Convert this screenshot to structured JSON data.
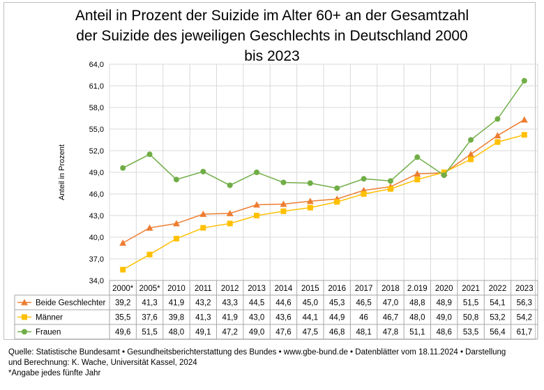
{
  "chart_data": {
    "type": "line",
    "title_lines": [
      "Anteil in Prozent der Suizide im Alter 60+ an der Gesamtzahl",
      "der Suizide des jeweiligen Geschlechts in Deutschland 2000",
      "bis 2023"
    ],
    "ylabel": "Anteil in Prozent",
    "ylim": [
      34.0,
      64.0
    ],
    "yticks": [
      "34,0",
      "37,0",
      "40,0",
      "43,0",
      "46,0",
      "49,0",
      "52,0",
      "55,0",
      "58,0",
      "61,0",
      "64,0"
    ],
    "categories": [
      "2000*",
      "2005*",
      "2010",
      "2011",
      "2012",
      "2013",
      "2014",
      "2015",
      "2016",
      "2017",
      "2018",
      "2.019",
      "2020",
      "2021",
      "2022",
      "2023"
    ],
    "grid": true,
    "data_table": true,
    "series": [
      {
        "name": "Beide Geschlechter",
        "color": "#ED7D31",
        "marker": "triangle",
        "values": [
          39.2,
          41.3,
          41.9,
          43.2,
          43.3,
          44.5,
          44.6,
          45.0,
          45.3,
          46.5,
          47.0,
          48.8,
          48.9,
          51.5,
          54.1,
          56.3
        ],
        "labels": [
          "39,2",
          "41,3",
          "41,9",
          "43,2",
          "43,3",
          "44,5",
          "44,6",
          "45,0",
          "45,3",
          "46,5",
          "47,0",
          "48,8",
          "48,9",
          "51,5",
          "54,1",
          "56,3"
        ]
      },
      {
        "name": "Männer",
        "color": "#FFC000",
        "marker": "square",
        "values": [
          35.5,
          37.6,
          39.8,
          41.3,
          41.9,
          43.0,
          43.6,
          44.1,
          44.9,
          46.0,
          46.7,
          48.0,
          49.0,
          50.8,
          53.2,
          54.2
        ],
        "labels": [
          "35,5",
          "37,6",
          "39,8",
          "41,3",
          "41,9",
          "43,0",
          "43,6",
          "44,1",
          "44,9",
          "46",
          "46,7",
          "48,0",
          "49,0",
          "50,8",
          "53,2",
          "54,2"
        ]
      },
      {
        "name": "Frauen",
        "color": "#70AD47",
        "marker": "circle",
        "values": [
          49.6,
          51.5,
          48.0,
          49.1,
          47.2,
          49.0,
          47.6,
          47.5,
          46.8,
          48.1,
          47.8,
          51.1,
          48.6,
          53.5,
          56.4,
          61.7
        ],
        "labels": [
          "49,6",
          "51,5",
          "48,0",
          "49,1",
          "47,2",
          "49,0",
          "47,6",
          "47,5",
          "46,8",
          "48,1",
          "47,8",
          "51,1",
          "48,6",
          "53,5",
          "56,4",
          "61,7"
        ]
      }
    ]
  },
  "footer": {
    "line1": "Quelle: Statistische Bundesamt • Gesundheitsberichterstattung des Bundes • www.gbe-bund.de • Datenblätter vom 18.11.2024 • Darstellung",
    "line2": "und Berechnung: K. Wache, Universität Kassel, 2024",
    "line3": "*Angabe jedes fünfte Jahr"
  }
}
